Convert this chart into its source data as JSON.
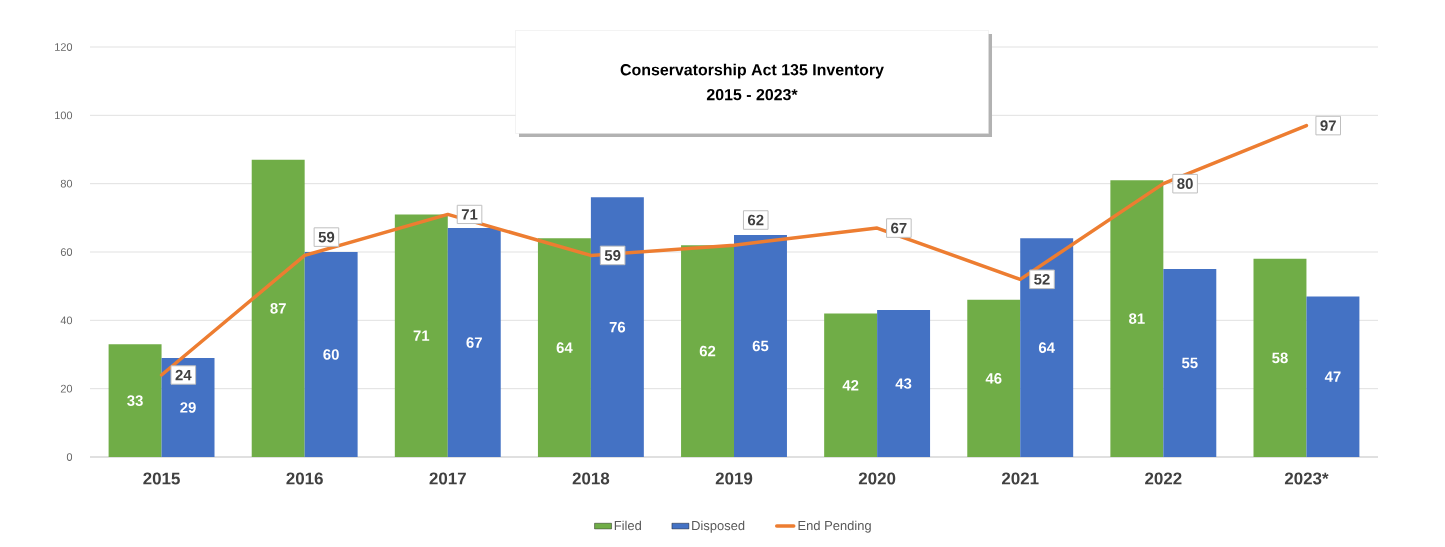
{
  "chart_data": {
    "type": "bar",
    "title": "Conservatorship Act 135 Inventory",
    "subtitle": "2015 - 2023*",
    "categories": [
      "2015",
      "2016",
      "2017",
      "2018",
      "2019",
      "2020",
      "2021",
      "2022",
      "2023*"
    ],
    "series": [
      {
        "name": "Filed",
        "color": "#70ad47",
        "values": [
          33,
          87,
          71,
          64,
          62,
          42,
          46,
          81,
          58
        ]
      },
      {
        "name": "Disposed",
        "color": "#4472c4",
        "values": [
          29,
          60,
          67,
          76,
          65,
          43,
          64,
          55,
          47
        ]
      },
      {
        "name": "End Pending",
        "type": "line",
        "marker": "none",
        "color": "#ed7d31",
        "values": [
          24,
          59,
          71,
          59,
          62,
          67,
          52,
          80,
          97
        ]
      }
    ],
    "ylim": [
      0,
      120
    ],
    "yticks": [
      0,
      20,
      40,
      60,
      80,
      100,
      120
    ],
    "grid": "y",
    "legend": "bottom",
    "data_labels": true
  }
}
